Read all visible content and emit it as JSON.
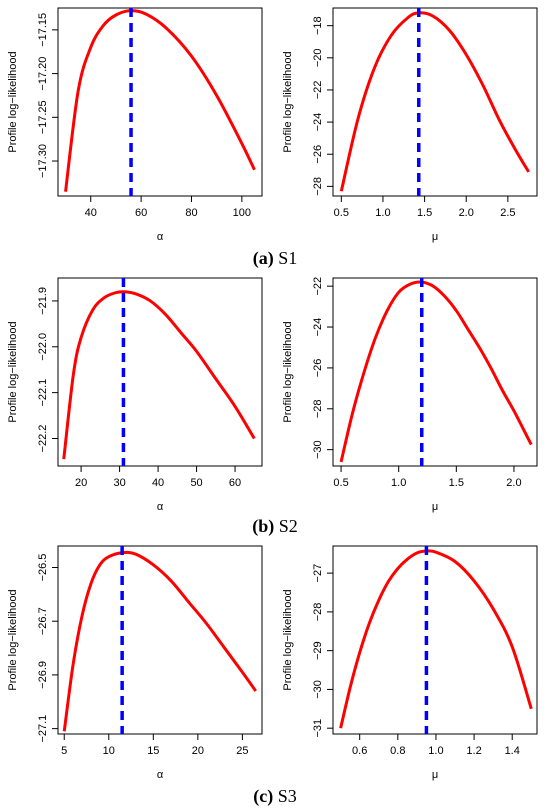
{
  "chart_data": [
    {
      "type": "line",
      "group": "S1",
      "xlabel": "α",
      "ylabel": "Profile log−likelihood",
      "xlim": [
        27,
        108
      ],
      "ylim": [
        -17.34,
        -17.125
      ],
      "xticks": [
        40,
        60,
        80,
        100
      ],
      "xtick_labels": [
        "40",
        "60",
        "80",
        "100"
      ],
      "yticks": [
        -17.15,
        -17.2,
        -17.25,
        -17.3
      ],
      "ytick_labels": [
        "−17.15",
        "−17.20",
        "−17.25",
        "−17.30"
      ],
      "peak": 56,
      "series": [
        {
          "x": [
            30,
            35,
            40,
            45,
            50,
            56,
            62,
            70,
            80,
            90,
            100,
            105
          ],
          "y": [
            -17.335,
            -17.22,
            -17.17,
            -17.145,
            -17.133,
            -17.128,
            -17.132,
            -17.148,
            -17.18,
            -17.225,
            -17.28,
            -17.31
          ]
        }
      ]
    },
    {
      "type": "line",
      "group": "S1",
      "xlabel": "μ",
      "ylabel": "Profile log−likelihood",
      "xlim": [
        0.4,
        2.85
      ],
      "ylim": [
        -28.6,
        -16.9
      ],
      "xticks": [
        0.5,
        1.0,
        1.5,
        2.0,
        2.5
      ],
      "xtick_labels": [
        "0.5",
        "1.0",
        "1.5",
        "2.0",
        "2.5"
      ],
      "yticks": [
        -18,
        -20,
        -22,
        -24,
        -26,
        -28
      ],
      "ytick_labels": [
        "−18",
        "−20",
        "−22",
        "−24",
        "−26",
        "−28"
      ],
      "peak": 1.43,
      "series": [
        {
          "x": [
            0.5,
            0.7,
            0.9,
            1.1,
            1.3,
            1.43,
            1.6,
            1.8,
            2.0,
            2.2,
            2.4,
            2.6,
            2.75
          ],
          "y": [
            -28.3,
            -23.8,
            -20.6,
            -18.6,
            -17.5,
            -17.2,
            -17.4,
            -18.3,
            -19.8,
            -21.7,
            -23.9,
            -25.8,
            -27.1
          ]
        }
      ]
    },
    {
      "type": "line",
      "group": "S2",
      "xlabel": "α",
      "ylabel": "Profile log−likelihood",
      "xlim": [
        14,
        67
      ],
      "ylim": [
        -22.26,
        -21.85
      ],
      "xticks": [
        20,
        30,
        40,
        50,
        60
      ],
      "xtick_labels": [
        "20",
        "30",
        "40",
        "50",
        "60"
      ],
      "yticks": [
        -21.9,
        -22.0,
        -22.1,
        -22.2
      ],
      "ytick_labels": [
        "−21.9",
        "−22.0",
        "−22.1",
        "−22.2"
      ],
      "peak": 31,
      "series": [
        {
          "x": [
            15.5,
            18,
            20,
            23,
            26,
            29,
            31,
            34,
            38,
            42,
            46,
            50,
            55,
            60,
            65
          ],
          "y": [
            -22.245,
            -22.06,
            -21.98,
            -21.92,
            -21.893,
            -21.882,
            -21.88,
            -21.884,
            -21.9,
            -21.93,
            -21.97,
            -22.01,
            -22.07,
            -22.13,
            -22.2
          ]
        }
      ]
    },
    {
      "type": "line",
      "group": "S2",
      "xlabel": "μ",
      "ylabel": "Profile log−likelihood",
      "xlim": [
        0.43,
        2.2
      ],
      "ylim": [
        -30.8,
        -21.6
      ],
      "xticks": [
        0.5,
        1.0,
        1.5,
        2.0
      ],
      "xtick_labels": [
        "0.5",
        "1.0",
        "1.5",
        "2.0"
      ],
      "yticks": [
        -22,
        -24,
        -26,
        -28,
        -30
      ],
      "ytick_labels": [
        "−22",
        "−24",
        "−26",
        "−28",
        "−30"
      ],
      "peak": 1.2,
      "series": [
        {
          "x": [
            0.5,
            0.6,
            0.7,
            0.8,
            0.9,
            1.0,
            1.1,
            1.2,
            1.3,
            1.4,
            1.5,
            1.6,
            1.7,
            1.8,
            1.9,
            2.0,
            2.1,
            2.15
          ],
          "y": [
            -30.6,
            -28.2,
            -26.2,
            -24.5,
            -23.2,
            -22.3,
            -21.9,
            -21.8,
            -22.0,
            -22.5,
            -23.2,
            -24.1,
            -25.0,
            -26.0,
            -27.1,
            -28.1,
            -29.2,
            -29.75
          ]
        }
      ]
    },
    {
      "type": "line",
      "group": "S3",
      "xlabel": "α",
      "ylabel": "Profile log−likelihood",
      "xlim": [
        4.3,
        27.2
      ],
      "ylim": [
        -27.12,
        -26.42
      ],
      "xticks": [
        5,
        10,
        15,
        20,
        25
      ],
      "xtick_labels": [
        "5",
        "10",
        "15",
        "20",
        "25"
      ],
      "yticks": [
        -26.5,
        -26.7,
        -26.9,
        -27.1
      ],
      "ytick_labels": [
        "−26.5",
        "−26.7",
        "−26.9",
        "−27.1"
      ],
      "peak": 11.5,
      "series": [
        {
          "x": [
            5,
            6,
            7,
            8,
            9,
            10,
            11.5,
            13,
            15,
            17,
            19,
            21,
            23,
            25,
            26.5
          ],
          "y": [
            -27.11,
            -26.86,
            -26.68,
            -26.56,
            -26.49,
            -26.46,
            -26.445,
            -26.45,
            -26.49,
            -26.55,
            -26.63,
            -26.71,
            -26.8,
            -26.89,
            -26.96
          ]
        }
      ]
    },
    {
      "type": "line",
      "group": "S3",
      "xlabel": "μ",
      "ylabel": "Profile log−likelihood",
      "xlim": [
        0.46,
        1.53
      ],
      "ylim": [
        -31.15,
        -26.3
      ],
      "xticks": [
        0.6,
        0.8,
        1.0,
        1.2,
        1.4
      ],
      "xtick_labels": [
        "0.6",
        "0.8",
        "1.0",
        "1.2",
        "1.4"
      ],
      "yticks": [
        -27,
        -28,
        -29,
        -30,
        -31
      ],
      "ytick_labels": [
        "−27",
        "−28",
        "−29",
        "−30",
        "−31"
      ],
      "peak": 0.95,
      "series": [
        {
          "x": [
            0.5,
            0.55,
            0.6,
            0.65,
            0.7,
            0.75,
            0.8,
            0.85,
            0.9,
            0.95,
            1.0,
            1.1,
            1.2,
            1.3,
            1.4,
            1.5
          ],
          "y": [
            -31.0,
            -29.95,
            -29.05,
            -28.3,
            -27.7,
            -27.22,
            -26.88,
            -26.64,
            -26.48,
            -26.43,
            -26.46,
            -26.7,
            -27.2,
            -27.92,
            -28.9,
            -30.5
          ]
        }
      ]
    }
  ],
  "captions": [
    {
      "label": "(a)",
      "text": " S1"
    },
    {
      "label": "(b)",
      "text": " S2"
    },
    {
      "label": "(c)",
      "text": " S3"
    }
  ],
  "colors": {
    "curve": "#ff0000",
    "peak_line": "#0000ff",
    "axis": "#000000"
  }
}
